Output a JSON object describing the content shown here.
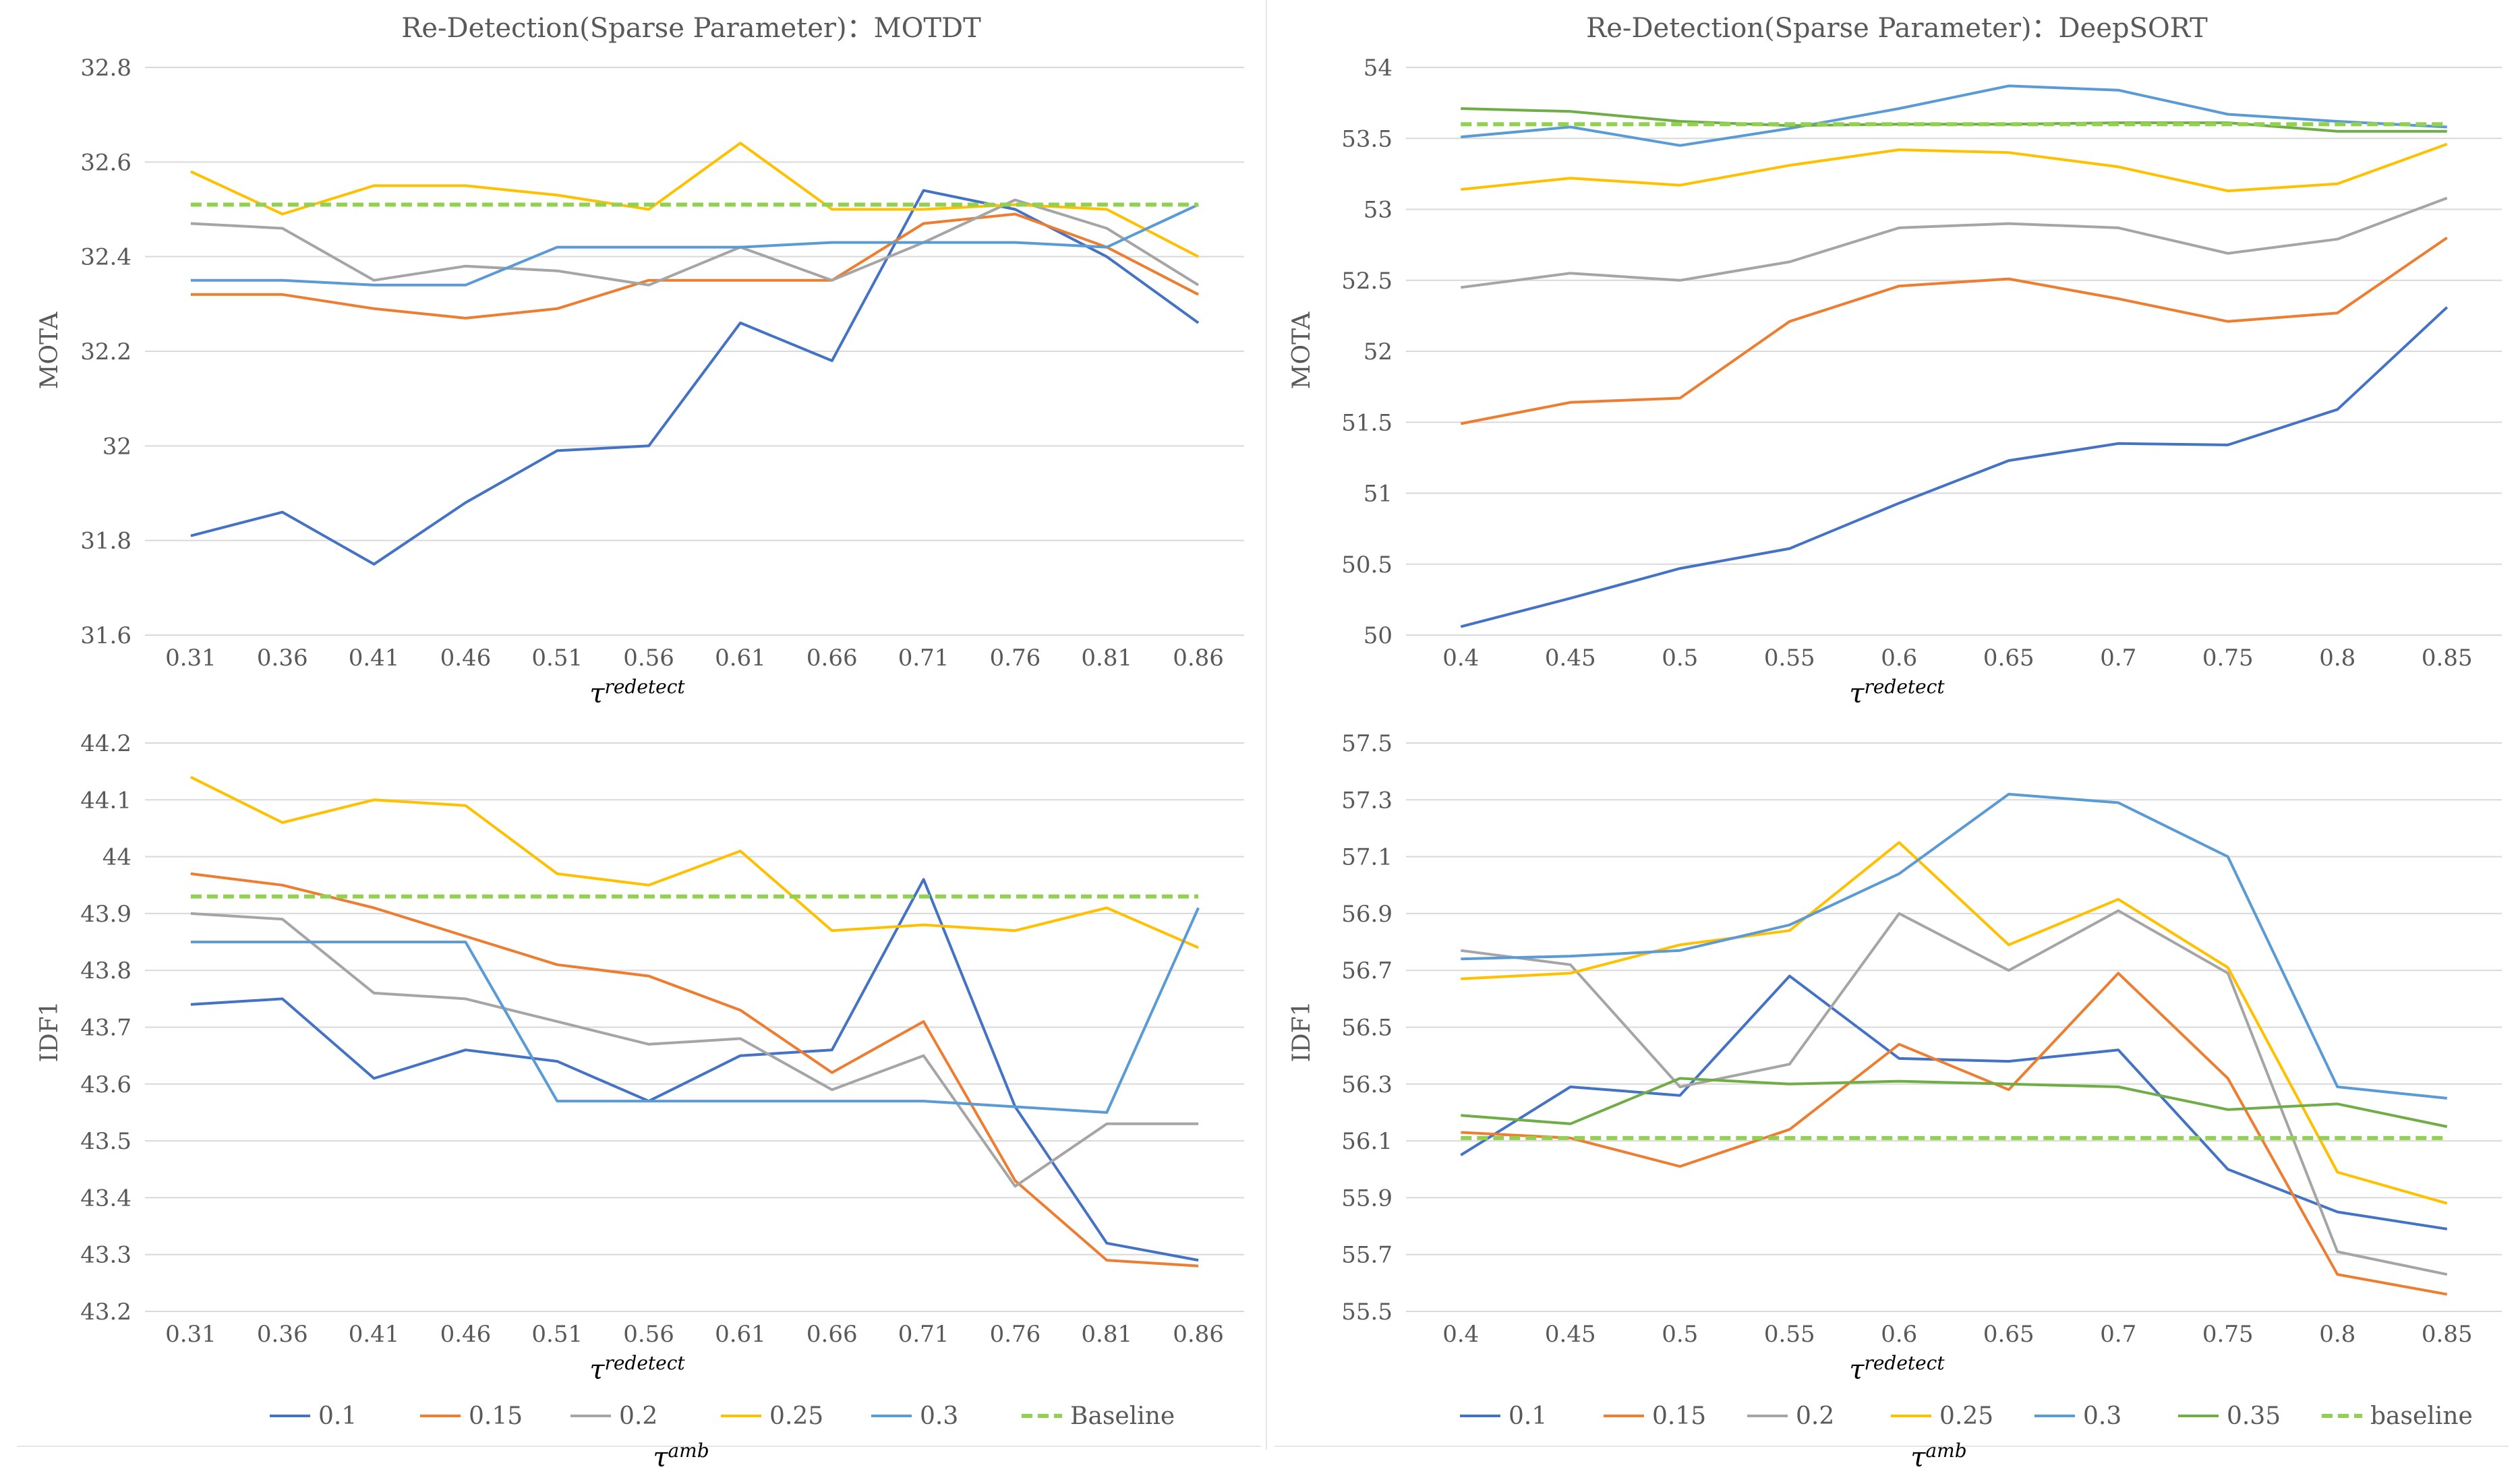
{
  "colors": {
    "0.1": "#4472C4",
    "0.15": "#ED7D31",
    "0.2": "#A5A5A5",
    "0.25": "#FFC000",
    "0.3": "#5B9BD5",
    "0.35": "#70AD47",
    "baseline": "#92D050",
    "grid": "#D9D9D9"
  },
  "legends": [
    {
      "entries": [
        "0.1",
        "0.15",
        "0.2",
        "0.25",
        "0.3",
        "Baseline"
      ],
      "caption_symbol": "τ",
      "caption_sup": "amb"
    },
    {
      "entries": [
        "0.1",
        "0.15",
        "0.2",
        "0.25",
        "0.3",
        "0.35",
        "baseline"
      ],
      "caption_symbol": "τ",
      "caption_sup": "amb"
    }
  ],
  "chart_data": [
    {
      "type": "line",
      "title": "Re-Detection(Sparse Parameter)：MOTDT",
      "ylabel": "MOTA",
      "xlabel_symbol": "τ",
      "xlabel_sup": "redetect",
      "categories": [
        "0.31",
        "0.36",
        "0.41",
        "0.46",
        "0.51",
        "0.56",
        "0.61",
        "0.66",
        "0.71",
        "0.76",
        "0.81",
        "0.86"
      ],
      "ylim": [
        31.6,
        32.8
      ],
      "yticks": [
        "31.6",
        "31.8",
        "32",
        "32.2",
        "32.4",
        "32.6",
        "32.8"
      ],
      "series": [
        {
          "name": "0.1",
          "values": [
            31.81,
            31.86,
            31.75,
            31.88,
            31.99,
            32.0,
            32.26,
            32.18,
            32.54,
            32.5,
            32.4,
            32.26
          ]
        },
        {
          "name": "0.15",
          "values": [
            32.32,
            32.32,
            32.29,
            32.27,
            32.29,
            32.35,
            32.35,
            32.35,
            32.47,
            32.49,
            32.42,
            32.32
          ]
        },
        {
          "name": "0.2",
          "values": [
            32.47,
            32.46,
            32.35,
            32.38,
            32.37,
            32.34,
            32.42,
            32.35,
            32.43,
            32.52,
            32.46,
            32.34
          ]
        },
        {
          "name": "0.25",
          "values": [
            32.58,
            32.49,
            32.55,
            32.55,
            32.53,
            32.5,
            32.64,
            32.5,
            32.5,
            32.51,
            32.5,
            32.4
          ]
        },
        {
          "name": "0.3",
          "values": [
            32.35,
            32.35,
            32.34,
            32.34,
            32.42,
            32.42,
            32.42,
            32.43,
            32.43,
            32.43,
            32.42,
            32.51
          ]
        },
        {
          "name": "Baseline",
          "values": [
            32.51,
            32.51,
            32.51,
            32.51,
            32.51,
            32.51,
            32.51,
            32.51,
            32.51,
            32.51,
            32.51,
            32.51
          ],
          "dashed": true
        }
      ]
    },
    {
      "type": "line",
      "title": "Re-Detection(Sparse Parameter)：DeepSORT",
      "ylabel": "MOTA",
      "xlabel_symbol": "τ",
      "xlabel_sup": "redetect",
      "categories": [
        "0.4",
        "0.45",
        "0.5",
        "0.55",
        "0.6",
        "0.65",
        "0.7",
        "0.75",
        "0.8",
        "0.85"
      ],
      "ylim": [
        50,
        54
      ],
      "yticks": [
        "50",
        "50.5",
        "51",
        "51.5",
        "52",
        "52.5",
        "53",
        "53.5",
        "54"
      ],
      "series": [
        {
          "name": "0.1",
          "values": [
            50.06,
            50.26,
            50.47,
            50.61,
            50.93,
            51.23,
            51.35,
            51.34,
            51.59,
            52.31
          ]
        },
        {
          "name": "0.15",
          "values": [
            51.49,
            51.64,
            51.67,
            52.21,
            52.46,
            52.51,
            52.37,
            52.21,
            52.27,
            52.8
          ]
        },
        {
          "name": "0.2",
          "values": [
            52.45,
            52.55,
            52.5,
            52.63,
            52.87,
            52.9,
            52.87,
            52.69,
            52.79,
            53.08
          ]
        },
        {
          "name": "0.25",
          "values": [
            53.14,
            53.22,
            53.17,
            53.31,
            53.42,
            53.4,
            53.3,
            53.13,
            53.18,
            53.46
          ]
        },
        {
          "name": "0.3",
          "values": [
            53.51,
            53.58,
            53.45,
            53.57,
            53.71,
            53.87,
            53.84,
            53.67,
            53.62,
            53.58
          ]
        },
        {
          "name": "0.35",
          "values": [
            53.71,
            53.69,
            53.62,
            53.59,
            53.6,
            53.6,
            53.61,
            53.61,
            53.55,
            53.55
          ]
        },
        {
          "name": "baseline",
          "values": [
            53.6,
            53.6,
            53.6,
            53.6,
            53.6,
            53.6,
            53.6,
            53.6,
            53.6,
            53.6
          ],
          "dashed": true
        }
      ]
    },
    {
      "type": "line",
      "title": "",
      "ylabel": "IDF1",
      "xlabel_symbol": "τ",
      "xlabel_sup": "redetect",
      "categories": [
        "0.31",
        "0.36",
        "0.41",
        "0.46",
        "0.51",
        "0.56",
        "0.61",
        "0.66",
        "0.71",
        "0.76",
        "0.81",
        "0.86"
      ],
      "ylim": [
        43.2,
        44.2
      ],
      "yticks": [
        "43.2",
        "43.3",
        "43.4",
        "43.5",
        "43.6",
        "43.7",
        "43.8",
        "43.9",
        "44",
        "44.1",
        "44.2"
      ],
      "series": [
        {
          "name": "0.1",
          "values": [
            43.74,
            43.75,
            43.61,
            43.66,
            43.64,
            43.57,
            43.65,
            43.66,
            43.96,
            43.56,
            43.32,
            43.29
          ]
        },
        {
          "name": "0.15",
          "values": [
            43.97,
            43.95,
            43.91,
            43.86,
            43.81,
            43.79,
            43.73,
            43.62,
            43.71,
            43.43,
            43.29,
            43.28
          ]
        },
        {
          "name": "0.2",
          "values": [
            43.9,
            43.89,
            43.76,
            43.75,
            43.71,
            43.67,
            43.68,
            43.59,
            43.65,
            43.42,
            43.53,
            43.53
          ]
        },
        {
          "name": "0.25",
          "values": [
            44.14,
            44.06,
            44.1,
            44.09,
            43.97,
            43.95,
            44.01,
            43.87,
            43.88,
            43.87,
            43.91,
            43.84
          ]
        },
        {
          "name": "0.3",
          "values": [
            43.85,
            43.85,
            43.85,
            43.85,
            43.57,
            43.57,
            43.57,
            43.57,
            43.57,
            43.56,
            43.55,
            43.91
          ]
        },
        {
          "name": "Baseline",
          "values": [
            43.93,
            43.93,
            43.93,
            43.93,
            43.93,
            43.93,
            43.93,
            43.93,
            43.93,
            43.93,
            43.93,
            43.93
          ],
          "dashed": true
        }
      ]
    },
    {
      "type": "line",
      "title": "",
      "ylabel": "IDF1",
      "xlabel_symbol": "τ",
      "xlabel_sup": "redetect",
      "categories": [
        "0.4",
        "0.45",
        "0.5",
        "0.55",
        "0.6",
        "0.65",
        "0.7",
        "0.75",
        "0.8",
        "0.85"
      ],
      "ylim": [
        55.5,
        57.5
      ],
      "yticks": [
        "55.5",
        "55.7",
        "55.9",
        "56.1",
        "56.3",
        "56.5",
        "56.7",
        "56.9",
        "57.1",
        "57.3",
        "57.5"
      ],
      "series": [
        {
          "name": "0.1",
          "values": [
            56.05,
            56.29,
            56.26,
            56.68,
            56.39,
            56.38,
            56.42,
            56.0,
            55.85,
            55.79
          ]
        },
        {
          "name": "0.15",
          "values": [
            56.13,
            56.11,
            56.01,
            56.14,
            56.44,
            56.28,
            56.69,
            56.32,
            55.63,
            55.56
          ]
        },
        {
          "name": "0.2",
          "values": [
            56.77,
            56.72,
            56.29,
            56.37,
            56.9,
            56.7,
            56.91,
            56.69,
            55.71,
            55.63
          ]
        },
        {
          "name": "0.25",
          "values": [
            56.67,
            56.69,
            56.79,
            56.84,
            57.15,
            56.79,
            56.95,
            56.71,
            55.99,
            55.88
          ]
        },
        {
          "name": "0.3",
          "values": [
            56.74,
            56.75,
            56.77,
            56.86,
            57.04,
            57.32,
            57.29,
            57.1,
            56.29,
            56.25
          ]
        },
        {
          "name": "0.35",
          "values": [
            56.19,
            56.16,
            56.32,
            56.3,
            56.31,
            56.3,
            56.29,
            56.21,
            56.23,
            56.15
          ]
        },
        {
          "name": "baseline",
          "values": [
            56.11,
            56.11,
            56.11,
            56.11,
            56.11,
            56.11,
            56.11,
            56.11,
            56.11,
            56.11
          ],
          "dashed": true
        }
      ]
    }
  ]
}
